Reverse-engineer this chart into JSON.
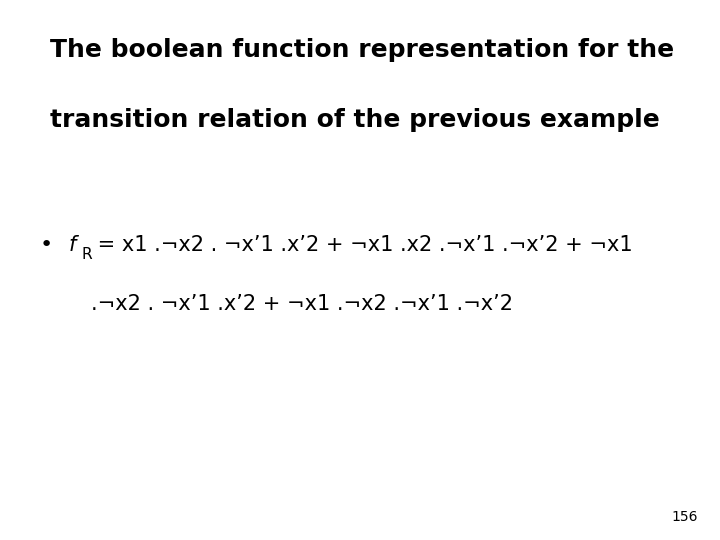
{
  "title_line1": "The boolean function representation for the",
  "title_line2": "transition relation of the previous example",
  "line1_rest": " = x1 .¬x2 . ¬x’1 .x’2 + ¬x1 .x2 .¬x’1 .¬x’2 + ¬x1",
  "line2": ".¬x2 . ¬x’1 .x’2 + ¬x1 .¬x2 .¬x’1 .¬x’2",
  "page_number": "156",
  "bg_color": "#ffffff",
  "text_color": "#000000",
  "title_fontsize": 18,
  "body_fontsize": 15,
  "page_fontsize": 10
}
